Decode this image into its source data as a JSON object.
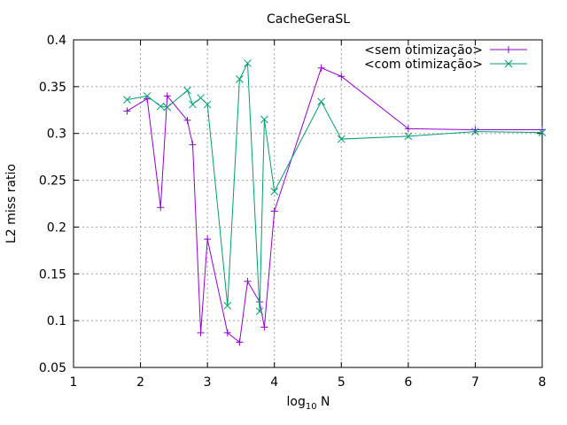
{
  "chart_data": {
    "type": "line",
    "title": "CacheGeraSL",
    "xlabel": "log",
    "xlabel_sub": "10",
    "xlabel_suffix": " N",
    "ylabel": "L2 miss ratio",
    "xlim": [
      1,
      8
    ],
    "ylim": [
      0.05,
      0.4
    ],
    "xticks": [
      1,
      2,
      3,
      4,
      5,
      6,
      7,
      8
    ],
    "yticks": [
      0.05,
      0.1,
      0.15,
      0.2,
      0.25,
      0.3,
      0.35,
      0.4
    ],
    "xtick_labels": [
      "1",
      "2",
      "3",
      "4",
      "5",
      "6",
      "7",
      "8"
    ],
    "ytick_labels": [
      "0.05",
      "0.1",
      "0.15",
      "0.2",
      "0.25",
      "0.3",
      "0.35",
      "0.4"
    ],
    "grid": true,
    "legend_position": "top-right",
    "series": [
      {
        "name": "<sem otimização>",
        "color": "#9400d3",
        "marker": "plus",
        "x": [
          1.8,
          2.1,
          2.3,
          2.4,
          2.7,
          2.78,
          2.9,
          3.0,
          3.3,
          3.48,
          3.6,
          3.78,
          3.85,
          4.0,
          4.7,
          5.0,
          6.0,
          7.0,
          8.0
        ],
        "y": [
          0.324,
          0.337,
          0.221,
          0.34,
          0.314,
          0.288,
          0.087,
          0.187,
          0.087,
          0.077,
          0.142,
          0.12,
          0.093,
          0.217,
          0.37,
          0.361,
          0.305,
          0.304,
          0.304
        ]
      },
      {
        "name": "<com otimização>",
        "color": "#009e73",
        "marker": "cross",
        "x": [
          1.8,
          2.1,
          2.3,
          2.4,
          2.7,
          2.78,
          2.9,
          3.0,
          3.3,
          3.48,
          3.6,
          3.78,
          3.85,
          4.0,
          4.7,
          5.0,
          6.0,
          7.0,
          8.0
        ],
        "y": [
          0.336,
          0.34,
          0.329,
          0.328,
          0.346,
          0.331,
          0.338,
          0.331,
          0.116,
          0.358,
          0.375,
          0.11,
          0.315,
          0.238,
          0.334,
          0.294,
          0.297,
          0.302,
          0.301
        ]
      }
    ]
  }
}
